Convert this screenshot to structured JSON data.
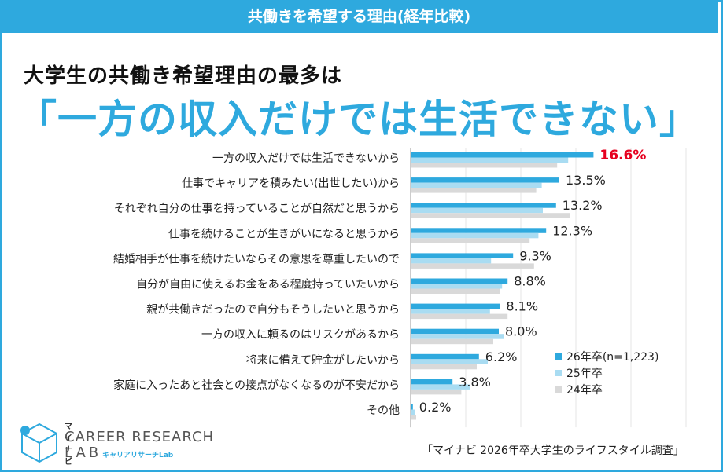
{
  "header": {
    "title": "共働きを希望する理由(経年比較)"
  },
  "headline": "大学生の共働き希望理由の最多は",
  "big_headline": "「一方の収入だけでは生活できない」",
  "source": "「マイナビ 2026年卒大学生のライフスタイル調査」",
  "logo": {
    "brand": "マイナビ",
    "line1": "CAREER RESEARCH",
    "line2": "LAB",
    "kana": "キャリアリサーチLab"
  },
  "colors": {
    "s26": "#2ea9de",
    "s25": "#a9dcf2",
    "s24": "#d9d9d9",
    "accent": "#e6001f",
    "title": "#2ea9de"
  },
  "chart_data": {
    "type": "bar",
    "orientation": "horizontal",
    "categories": [
      "一方の収入だけでは生活できないから",
      "仕事でキャリアを積みたい(出世したい)から",
      "それぞれ自分の仕事を持っていることが自然だと思うから",
      "仕事を続けることが生きがいになると思うから",
      "結婚相手が仕事を続けたいならその意思を尊重したいので",
      "自分が自由に使えるお金をある程度持っていたいから",
      "親が共働きだったので自分もそうしたいと思うから",
      "一方の収入に頼るのはリスクがあるから",
      "将来に備えて貯金がしたいから",
      "家庭に入ったあと社会との接点がなくなるのが不安だから",
      "その他"
    ],
    "series": [
      {
        "name": "26年卒(n=1,223)",
        "values": [
          16.6,
          13.5,
          13.2,
          12.3,
          9.3,
          8.8,
          8.1,
          8.0,
          6.2,
          3.8,
          0.2
        ]
      },
      {
        "name": "25年卒",
        "values": [
          14.3,
          11.9,
          12.0,
          11.6,
          7.3,
          8.3,
          7.2,
          8.5,
          7.0,
          5.4,
          0.4
        ]
      },
      {
        "name": "24年卒",
        "values": [
          13.3,
          11.4,
          14.5,
          10.8,
          11.2,
          8.1,
          8.8,
          7.5,
          6.0,
          4.6,
          0.5
        ]
      }
    ],
    "value_labels": [
      "16.6%",
      "13.5%",
      "13.2%",
      "12.3%",
      "9.3%",
      "8.8%",
      "8.1%",
      "8.0%",
      "6.2%",
      "3.8%",
      "0.2%"
    ],
    "highlight_index": 0,
    "xlim": [
      0,
      25
    ],
    "legend_position": "bottom-right"
  }
}
